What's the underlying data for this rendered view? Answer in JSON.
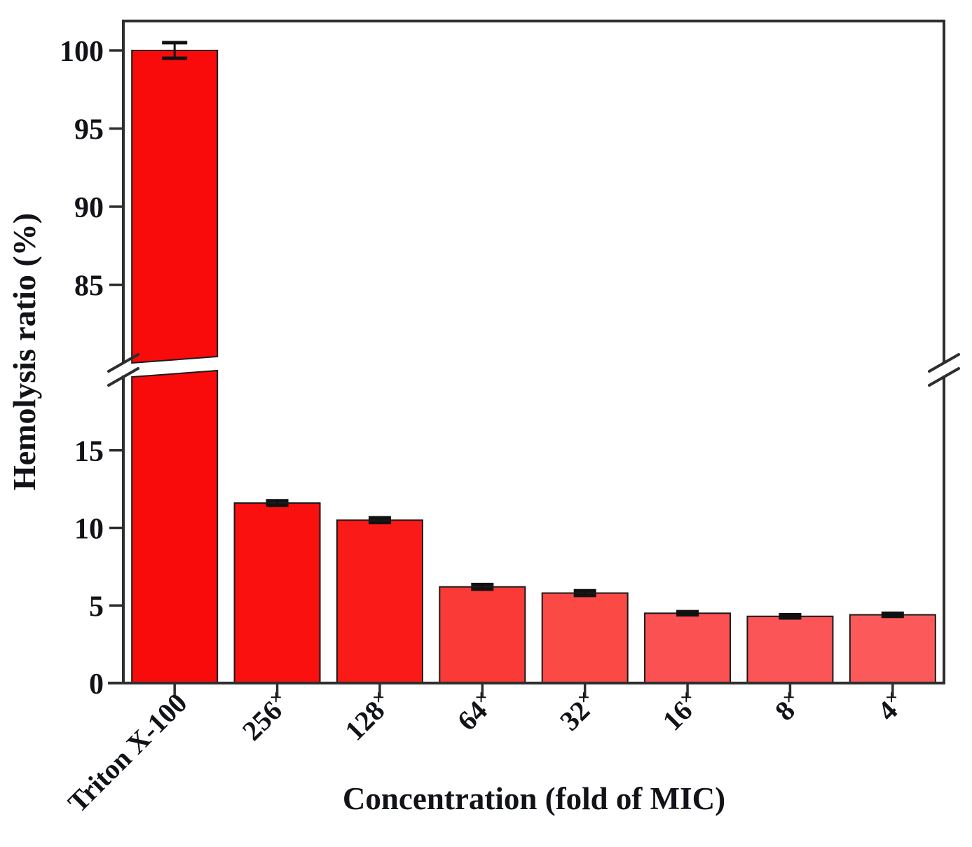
{
  "figure": {
    "background": "#ffffff"
  },
  "chart_data": {
    "type": "bar",
    "title": "",
    "xlabel": "Concentration (fold of MIC)",
    "ylabel": "Hemolysis ratio (%)",
    "categories": [
      {
        "base": "Triton X-100",
        "sup": ""
      },
      {
        "base": "256",
        "sup": "×"
      },
      {
        "base": "128",
        "sup": "×"
      },
      {
        "base": "64",
        "sup": "×"
      },
      {
        "base": "32",
        "sup": "×"
      },
      {
        "base": "16",
        "sup": "×"
      },
      {
        "base": "8",
        "sup": "×"
      },
      {
        "base": "4",
        "sup": "×"
      }
    ],
    "values": [
      100.0,
      11.6,
      10.5,
      6.2,
      5.8,
      4.5,
      4.3,
      4.4
    ],
    "errors": [
      0.5,
      0.15,
      0.15,
      0.15,
      0.15,
      0.1,
      0.1,
      0.1
    ],
    "bar_colors": [
      "#fa0b0b",
      "#fa100e",
      "#fa1a17",
      "#fa3a36",
      "#fb4945",
      "#fb5153",
      "#fc5557",
      "#fc5a5a"
    ],
    "bar_outline_color": "#1a1a1a",
    "error_bar_color": "#111111",
    "axis_color": "#2e2e2e",
    "text_color": "#111318",
    "y_axis_break": {
      "lower_range": [
        0,
        19.8
      ],
      "upper_range": [
        80.2,
        101.9
      ]
    },
    "y_ticks_lower": [
      0,
      5,
      10,
      15
    ],
    "y_ticks_upper": [
      85,
      90,
      95,
      100
    ],
    "grid": false,
    "legend": null
  }
}
